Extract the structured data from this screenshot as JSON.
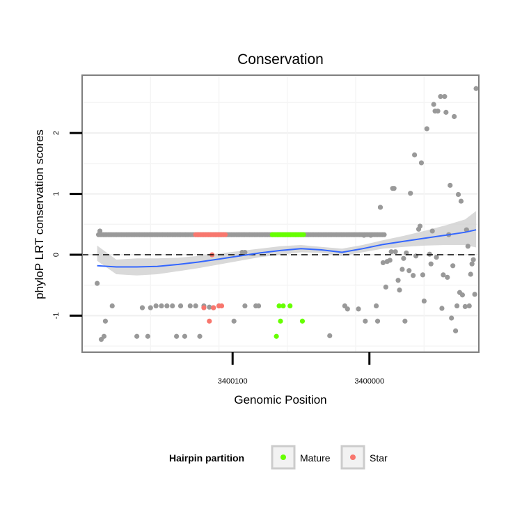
{
  "chart_data": {
    "type": "scatter",
    "title": "Conservation",
    "xlabel": "Genomic Position",
    "ylabel": "phyloP LRT conservation scores",
    "x_reversed": true,
    "xlim": [
      3400210,
      3399920
    ],
    "ylim": [
      -1.6,
      2.95
    ],
    "x_ticks": [
      {
        "value": 3400100,
        "label": "3400100"
      },
      {
        "value": 3400000,
        "label": "3400000"
      }
    ],
    "y_ticks": [
      {
        "value": -1,
        "label": "-1"
      },
      {
        "value": 0,
        "label": "0"
      },
      {
        "value": 1,
        "label": "1"
      },
      {
        "value": 2,
        "label": "2"
      }
    ],
    "reference_line": {
      "y": 0,
      "style": "dashed",
      "color": "#000000"
    },
    "grid": true,
    "legend": {
      "title": "Hairpin partition",
      "placement": "bottom",
      "entries": [
        {
          "name": "Mature",
          "color": "#66ff00"
        },
        {
          "name": "Star",
          "color": "#f8766d"
        }
      ]
    },
    "colors": {
      "other": "#999999",
      "Mature": "#66ff00",
      "Star": "#f8766d",
      "smooth": "#3366ff",
      "band": "#cccccc"
    },
    "series": [
      {
        "name": "Other",
        "points": [
          [
            3400199,
            -0.47
          ],
          [
            3400197,
            0.39
          ],
          [
            3400196,
            -1.39
          ],
          [
            3400194,
            -1.34
          ],
          [
            3400193,
            -1.09
          ],
          [
            3400188,
            -0.84
          ],
          [
            3400170,
            -1.34
          ],
          [
            3400166,
            -0.87
          ],
          [
            3400162,
            -1.34
          ],
          [
            3400160,
            -0.87
          ],
          [
            3400156,
            -0.84
          ],
          [
            3400152,
            -0.84
          ],
          [
            3400148,
            -0.84
          ],
          [
            3400144,
            -0.84
          ],
          [
            3400141,
            -1.34
          ],
          [
            3400138,
            -0.84
          ],
          [
            3400135,
            -1.34
          ],
          [
            3400131,
            -0.84
          ],
          [
            3400127,
            -0.84
          ],
          [
            3400124,
            -1.34
          ],
          [
            3400121,
            -0.84
          ],
          [
            3400117,
            -0.86
          ],
          [
            3400114,
            -0.87
          ],
          [
            3400110,
            -0.84
          ],
          [
            3400099,
            -1.09
          ],
          [
            3400091,
            -0.84
          ],
          [
            3400083,
            -0.84
          ],
          [
            3400081,
            -0.84
          ],
          [
            3400091,
            0.04
          ],
          [
            3400093,
            0.04
          ],
          [
            3400029,
            -1.33
          ],
          [
            3400018,
            -0.84
          ],
          [
            3400016,
            -0.89
          ],
          [
            3400008,
            -0.89
          ],
          [
            3400003,
            -1.09
          ],
          [
            3399994,
            -1.09
          ],
          [
            3399995,
            -0.84
          ],
          [
            3399999,
            0.32
          ],
          [
            3400004,
            0.32
          ],
          [
            3399992,
            0.78
          ],
          [
            3399990,
            -0.13
          ],
          [
            3399988,
            -0.53
          ],
          [
            3399987,
            -0.11
          ],
          [
            3399985,
            -0.09
          ],
          [
            3399984,
            0.05
          ],
          [
            3399983,
            1.09
          ],
          [
            3399982,
            1.09
          ],
          [
            3399981,
            0.05
          ],
          [
            3399979,
            -0.42
          ],
          [
            3399978,
            -0.58
          ],
          [
            3399976,
            -0.24
          ],
          [
            3399975,
            -0.06
          ],
          [
            3399974,
            -1.09
          ],
          [
            3399973,
            0.03
          ],
          [
            3399971,
            -0.26
          ],
          [
            3399970,
            1.01
          ],
          [
            3399968,
            -0.34
          ],
          [
            3399967,
            1.64
          ],
          [
            3399966,
            -0.02
          ],
          [
            3399964,
            0.42
          ],
          [
            3399963,
            0.47
          ],
          [
            3399962,
            1.51
          ],
          [
            3399961,
            -0.33
          ],
          [
            3399960,
            -0.76
          ],
          [
            3399958,
            2.07
          ],
          [
            3399956,
            0.01
          ],
          [
            3399955,
            -0.15
          ],
          [
            3399954,
            0.39
          ],
          [
            3399953,
            2.47
          ],
          [
            3399952,
            2.36
          ],
          [
            3399951,
            -0.04
          ],
          [
            3399950,
            2.36
          ],
          [
            3399948,
            2.6
          ],
          [
            3399947,
            -0.88
          ],
          [
            3399946,
            -0.33
          ],
          [
            3399945,
            2.6
          ],
          [
            3399944,
            2.34
          ],
          [
            3399943,
            -0.37
          ],
          [
            3399942,
            0.33
          ],
          [
            3399941,
            1.14
          ],
          [
            3399940,
            -1.04
          ],
          [
            3399939,
            -0.18
          ],
          [
            3399938,
            2.27
          ],
          [
            3399937,
            -1.25
          ],
          [
            3399936,
            -0.84
          ],
          [
            3399935,
            0.99
          ],
          [
            3399934,
            -0.62
          ],
          [
            3399933,
            0.88
          ],
          [
            3399932,
            -0.66
          ],
          [
            3399930,
            -0.85
          ],
          [
            3399929,
            0.41
          ],
          [
            3399928,
            0.14
          ],
          [
            3399927,
            -0.84
          ],
          [
            3399926,
            -0.32
          ],
          [
            3399925,
            -0.15
          ],
          [
            3399924,
            -0.08
          ],
          [
            3399923,
            -0.65
          ],
          [
            3399922,
            2.73
          ]
        ]
      },
      {
        "name": "Mature",
        "points": [
          [
            3400068,
            -1.34
          ],
          [
            3400066,
            -0.84
          ],
          [
            3400065,
            -1.09
          ],
          [
            3400063,
            -0.84
          ],
          [
            3400058,
            -0.84
          ],
          [
            3400049,
            -1.09
          ]
        ]
      },
      {
        "name": "Star",
        "points": [
          [
            3400121,
            -0.87
          ],
          [
            3400117,
            -1.09
          ],
          [
            3400114,
            -0.87
          ],
          [
            3400110,
            -0.84
          ],
          [
            3400108,
            -0.84
          ],
          [
            3400115,
            0.0
          ]
        ]
      }
    ],
    "bands": [
      {
        "name": "Other",
        "x_from": 3400198,
        "x_to": 3399989,
        "y": 0.33
      },
      {
        "name": "Star",
        "x_from": 3400127,
        "x_to": 3400105,
        "y": 0.33
      },
      {
        "name": "Mature",
        "x_from": 3400071,
        "x_to": 3400047,
        "y": 0.33
      }
    ],
    "smooth": {
      "method": "loess",
      "x": [
        3400199,
        3400185,
        3400170,
        3400155,
        3400140,
        3400125,
        3400110,
        3400095,
        3400080,
        3400065,
        3400050,
        3400035,
        3400020,
        3400005,
        3399990,
        3399975,
        3399960,
        3399945,
        3399930,
        3399922
      ],
      "y": [
        -0.18,
        -0.2,
        -0.2,
        -0.19,
        -0.16,
        -0.12,
        -0.07,
        -0.02,
        0.03,
        0.07,
        0.1,
        0.08,
        0.04,
        0.1,
        0.17,
        0.22,
        0.27,
        0.32,
        0.37,
        0.41
      ],
      "lower": [
        -0.1,
        -0.32,
        -0.34,
        -0.32,
        -0.27,
        -0.22,
        -0.16,
        -0.1,
        -0.04,
        0.0,
        0.04,
        0.03,
        -0.02,
        0.04,
        0.1,
        0.13,
        0.15,
        0.16,
        0.16,
        0.12
      ],
      "upper": [
        0.15,
        -0.08,
        -0.06,
        -0.06,
        -0.05,
        -0.02,
        0.02,
        0.06,
        0.1,
        0.14,
        0.16,
        0.13,
        0.1,
        0.16,
        0.24,
        0.31,
        0.39,
        0.48,
        0.58,
        0.72
      ]
    }
  }
}
